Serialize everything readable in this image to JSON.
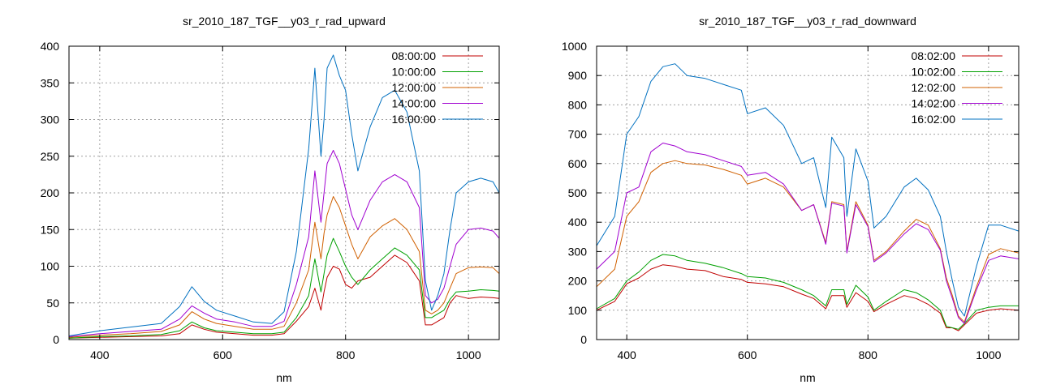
{
  "chart_data": [
    {
      "type": "line",
      "title": "sr_2010_187_TGF__y03_r_rad_upward",
      "xlabel": "nm",
      "ylabel": "",
      "xlim": [
        350,
        1050
      ],
      "ylim": [
        0,
        400
      ],
      "xticks": [
        400,
        600,
        800,
        1000
      ],
      "yticks": [
        0,
        50,
        100,
        150,
        200,
        250,
        300,
        350,
        400
      ],
      "grid": true,
      "legend": "top-right",
      "series": [
        {
          "name": "08:00:00",
          "color": "#c00000",
          "x": [
            350,
            400,
            450,
            500,
            530,
            550,
            570,
            590,
            620,
            650,
            680,
            700,
            720,
            740,
            750,
            760,
            765,
            770,
            780,
            790,
            800,
            810,
            820,
            840,
            860,
            880,
            900,
            920,
            930,
            940,
            950,
            960,
            970,
            980,
            1000,
            1020,
            1040,
            1050
          ],
          "y": [
            2,
            3,
            4,
            5,
            8,
            20,
            14,
            10,
            8,
            6,
            6,
            8,
            25,
            45,
            70,
            40,
            65,
            85,
            100,
            96,
            75,
            70,
            80,
            85,
            100,
            115,
            105,
            80,
            20,
            20,
            25,
            30,
            50,
            60,
            56,
            58,
            57,
            56
          ]
        },
        {
          "name": "10:00:00",
          "color": "#00a000",
          "x": [
            350,
            400,
            450,
            500,
            530,
            550,
            570,
            590,
            620,
            650,
            680,
            700,
            720,
            740,
            750,
            760,
            765,
            770,
            780,
            790,
            800,
            810,
            820,
            840,
            860,
            880,
            900,
            920,
            930,
            940,
            950,
            960,
            970,
            980,
            1000,
            1020,
            1040,
            1050
          ],
          "y": [
            2,
            4,
            5,
            7,
            12,
            24,
            16,
            12,
            10,
            8,
            8,
            10,
            30,
            60,
            110,
            65,
            90,
            115,
            138,
            120,
            100,
            85,
            75,
            95,
            110,
            125,
            115,
            95,
            30,
            30,
            35,
            40,
            55,
            65,
            66,
            68,
            67,
            66
          ]
        },
        {
          "name": "12:00:00",
          "color": "#d06000",
          "x": [
            350,
            400,
            450,
            500,
            530,
            550,
            570,
            590,
            620,
            650,
            680,
            700,
            720,
            740,
            750,
            760,
            765,
            770,
            780,
            790,
            800,
            810,
            820,
            840,
            860,
            880,
            900,
            920,
            930,
            940,
            950,
            960,
            970,
            980,
            1000,
            1020,
            1040,
            1050
          ],
          "y": [
            3,
            6,
            8,
            11,
            20,
            38,
            28,
            22,
            18,
            14,
            14,
            18,
            50,
            95,
            160,
            110,
            145,
            170,
            195,
            180,
            155,
            130,
            110,
            140,
            155,
            165,
            150,
            120,
            40,
            35,
            40,
            50,
            70,
            90,
            98,
            99,
            98,
            90
          ]
        },
        {
          "name": "14:00:00",
          "color": "#a000d0",
          "x": [
            350,
            400,
            450,
            500,
            530,
            550,
            570,
            590,
            620,
            650,
            680,
            700,
            720,
            740,
            750,
            760,
            765,
            770,
            780,
            790,
            800,
            810,
            820,
            840,
            860,
            880,
            900,
            920,
            930,
            940,
            950,
            960,
            970,
            980,
            1000,
            1020,
            1040,
            1050
          ],
          "y": [
            4,
            8,
            11,
            14,
            28,
            46,
            36,
            28,
            24,
            18,
            18,
            25,
            75,
            140,
            230,
            160,
            200,
            240,
            258,
            240,
            205,
            170,
            150,
            190,
            215,
            225,
            215,
            180,
            60,
            50,
            55,
            70,
            100,
            130,
            150,
            152,
            148,
            138
          ]
        },
        {
          "name": "16:00:00",
          "color": "#0070c0",
          "x": [
            350,
            400,
            450,
            500,
            530,
            550,
            570,
            590,
            620,
            650,
            680,
            700,
            720,
            740,
            750,
            760,
            765,
            770,
            780,
            790,
            800,
            810,
            820,
            840,
            860,
            880,
            900,
            920,
            930,
            940,
            950,
            960,
            970,
            980,
            1000,
            1020,
            1040,
            1050
          ],
          "y": [
            5,
            12,
            17,
            22,
            45,
            72,
            52,
            40,
            32,
            24,
            22,
            38,
            120,
            260,
            370,
            250,
            300,
            370,
            388,
            360,
            340,
            280,
            230,
            290,
            330,
            340,
            310,
            230,
            80,
            40,
            60,
            90,
            150,
            200,
            215,
            220,
            215,
            200
          ]
        }
      ]
    },
    {
      "type": "line",
      "title": "sr_2010_187_TGF__y03_r_rad_downward",
      "xlabel": "nm",
      "ylabel": "",
      "xlim": [
        350,
        1050
      ],
      "ylim": [
        0,
        1000
      ],
      "xticks": [
        400,
        600,
        800,
        1000
      ],
      "yticks": [
        0,
        100,
        200,
        300,
        400,
        500,
        600,
        700,
        800,
        900,
        1000
      ],
      "grid": true,
      "legend": "top-right",
      "series": [
        {
          "name": "08:02:00",
          "color": "#c00000",
          "x": [
            350,
            380,
            400,
            420,
            440,
            460,
            480,
            500,
            530,
            560,
            590,
            600,
            630,
            660,
            690,
            710,
            730,
            740,
            760,
            765,
            780,
            800,
            810,
            830,
            860,
            880,
            900,
            920,
            930,
            940,
            950,
            960,
            980,
            1000,
            1020,
            1050
          ],
          "y": [
            100,
            130,
            190,
            210,
            240,
            255,
            250,
            240,
            235,
            215,
            205,
            195,
            190,
            180,
            155,
            140,
            105,
            150,
            150,
            110,
            160,
            130,
            95,
            120,
            150,
            140,
            120,
            90,
            40,
            40,
            30,
            50,
            90,
            100,
            105,
            100
          ]
        },
        {
          "name": "10:02:00",
          "color": "#00a000",
          "x": [
            350,
            380,
            400,
            420,
            440,
            460,
            480,
            500,
            530,
            560,
            590,
            600,
            630,
            660,
            690,
            710,
            730,
            740,
            760,
            765,
            780,
            800,
            810,
            830,
            860,
            880,
            900,
            920,
            930,
            940,
            950,
            960,
            980,
            1000,
            1020,
            1050
          ],
          "y": [
            105,
            140,
            200,
            230,
            270,
            290,
            285,
            270,
            260,
            245,
            225,
            215,
            210,
            195,
            170,
            150,
            115,
            170,
            170,
            120,
            185,
            145,
            100,
            130,
            170,
            160,
            135,
            100,
            45,
            40,
            35,
            55,
            100,
            110,
            115,
            115
          ]
        },
        {
          "name": "12:02:00",
          "color": "#d06000",
          "x": [
            350,
            380,
            400,
            420,
            440,
            460,
            480,
            500,
            530,
            560,
            590,
            600,
            630,
            660,
            690,
            710,
            730,
            740,
            760,
            765,
            780,
            800,
            810,
            830,
            860,
            880,
            900,
            920,
            930,
            940,
            950,
            960,
            980,
            1000,
            1020,
            1050
          ],
          "y": [
            180,
            240,
            420,
            470,
            570,
            600,
            610,
            600,
            595,
            580,
            560,
            530,
            550,
            520,
            440,
            460,
            330,
            470,
            460,
            300,
            470,
            390,
            270,
            300,
            370,
            410,
            390,
            310,
            210,
            150,
            80,
            60,
            180,
            290,
            310,
            295
          ]
        },
        {
          "name": "14:02:00",
          "color": "#a000d0",
          "x": [
            350,
            380,
            400,
            420,
            440,
            460,
            480,
            500,
            530,
            560,
            590,
            600,
            630,
            660,
            690,
            710,
            730,
            740,
            760,
            765,
            780,
            800,
            810,
            830,
            860,
            880,
            900,
            920,
            930,
            940,
            950,
            960,
            980,
            1000,
            1020,
            1050
          ],
          "y": [
            240,
            300,
            500,
            520,
            640,
            670,
            660,
            640,
            630,
            610,
            590,
            560,
            570,
            530,
            440,
            460,
            325,
            465,
            455,
            295,
            460,
            385,
            265,
            295,
            360,
            395,
            375,
            305,
            200,
            140,
            75,
            55,
            170,
            270,
            285,
            275
          ]
        },
        {
          "name": "16:02:00",
          "color": "#0070c0",
          "x": [
            350,
            380,
            400,
            420,
            440,
            460,
            480,
            500,
            530,
            560,
            590,
            600,
            630,
            660,
            690,
            710,
            730,
            740,
            760,
            765,
            780,
            800,
            810,
            830,
            860,
            880,
            900,
            920,
            930,
            940,
            950,
            960,
            980,
            1000,
            1020,
            1050
          ],
          "y": [
            320,
            420,
            700,
            760,
            880,
            930,
            940,
            900,
            890,
            870,
            850,
            770,
            790,
            730,
            600,
            620,
            450,
            690,
            620,
            420,
            650,
            540,
            380,
            420,
            520,
            550,
            510,
            420,
            300,
            200,
            110,
            80,
            250,
            390,
            390,
            370
          ]
        }
      ]
    }
  ]
}
